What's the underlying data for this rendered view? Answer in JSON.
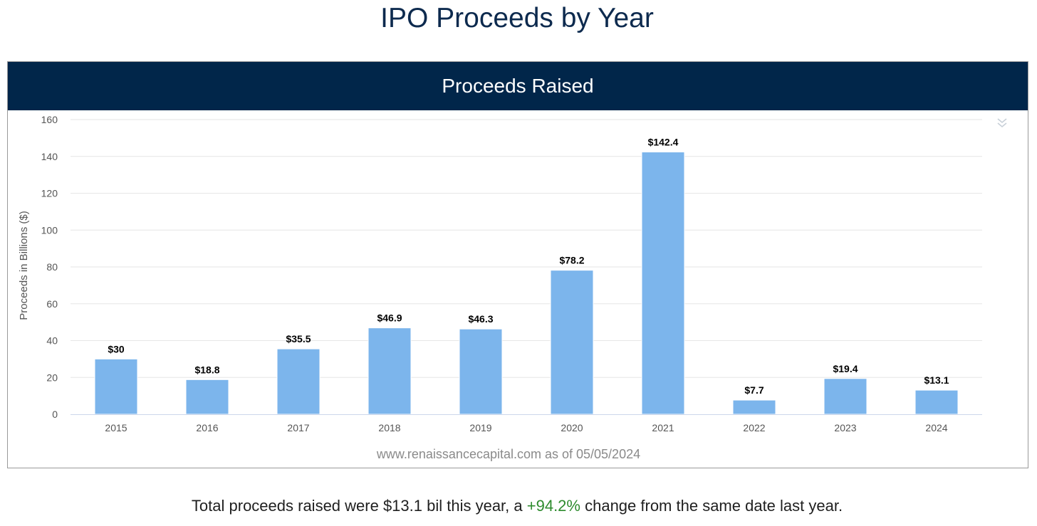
{
  "page_title": "IPO Proceeds by Year",
  "chart_header": "Proceeds Raised",
  "export_icon": "double-chevron-down-icon",
  "source_note": "www.renaissancecapital.com as of 05/05/2024",
  "footer": {
    "prefix": "Total proceeds raised were $13.1 bil this year, a ",
    "change": "+94.2%",
    "suffix": " change from the same date last year."
  },
  "colors": {
    "header_bg": "#01264a",
    "bar": "#7cb5ec",
    "change_positive": "#2e8b2e",
    "title": "#0d2a4e"
  },
  "chart_data": {
    "type": "bar",
    "title": "Proceeds Raised",
    "xlabel": "",
    "ylabel": "Proceeds in Billions ($)",
    "categories": [
      "2015",
      "2016",
      "2017",
      "2018",
      "2019",
      "2020",
      "2021",
      "2022",
      "2023",
      "2024"
    ],
    "values": [
      30,
      18.8,
      35.5,
      46.9,
      46.3,
      78.2,
      142.4,
      7.7,
      19.4,
      13.1
    ],
    "data_labels": [
      "$30",
      "$18.8",
      "$35.5",
      "$46.9",
      "$46.3",
      "$78.2",
      "$142.4",
      "$7.7",
      "$19.4",
      "$13.1"
    ],
    "ylim": [
      0,
      160
    ],
    "yticks": [
      0,
      20,
      40,
      60,
      80,
      100,
      120,
      140,
      160
    ],
    "grid": true,
    "legend": "none"
  }
}
